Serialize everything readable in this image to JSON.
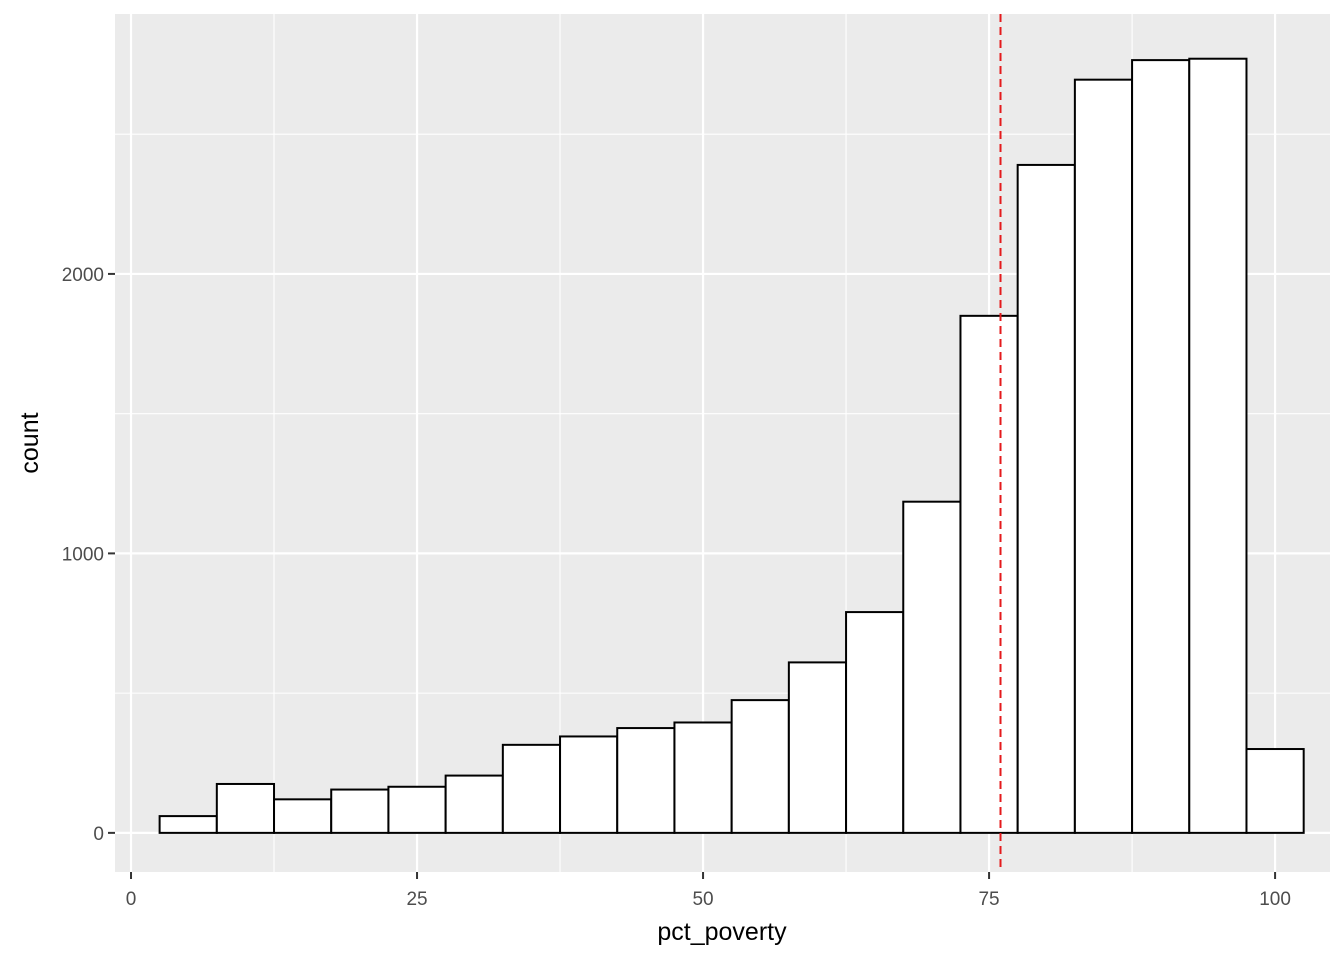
{
  "chart_data": {
    "type": "bar",
    "title": "",
    "xlabel": "pct_poverty",
    "ylabel": "count",
    "xlim": [
      -1.4,
      104.8
    ],
    "ylim": [
      -140,
      2930
    ],
    "x_ticks": [
      0,
      25,
      50,
      75,
      100
    ],
    "y_ticks": [
      0,
      1000,
      2000
    ],
    "bin_width": 5,
    "bin_centers": [
      5,
      10,
      15,
      20,
      25,
      30,
      35,
      40,
      45,
      50,
      55,
      60,
      65,
      70,
      75,
      80,
      85,
      90,
      95,
      100
    ],
    "values": [
      60,
      175,
      120,
      155,
      165,
      205,
      315,
      345,
      375,
      395,
      475,
      610,
      790,
      1185,
      1850,
      2390,
      2695,
      2765,
      2770,
      300
    ],
    "reference_line": {
      "x": 76,
      "style": "dashed",
      "color": "#e41a1c"
    },
    "grid": true,
    "legend": "none",
    "colors": {
      "panel": "#ebebeb",
      "grid": "#ffffff",
      "bar_fill": "#ffffff",
      "bar_stroke": "#000000"
    }
  }
}
